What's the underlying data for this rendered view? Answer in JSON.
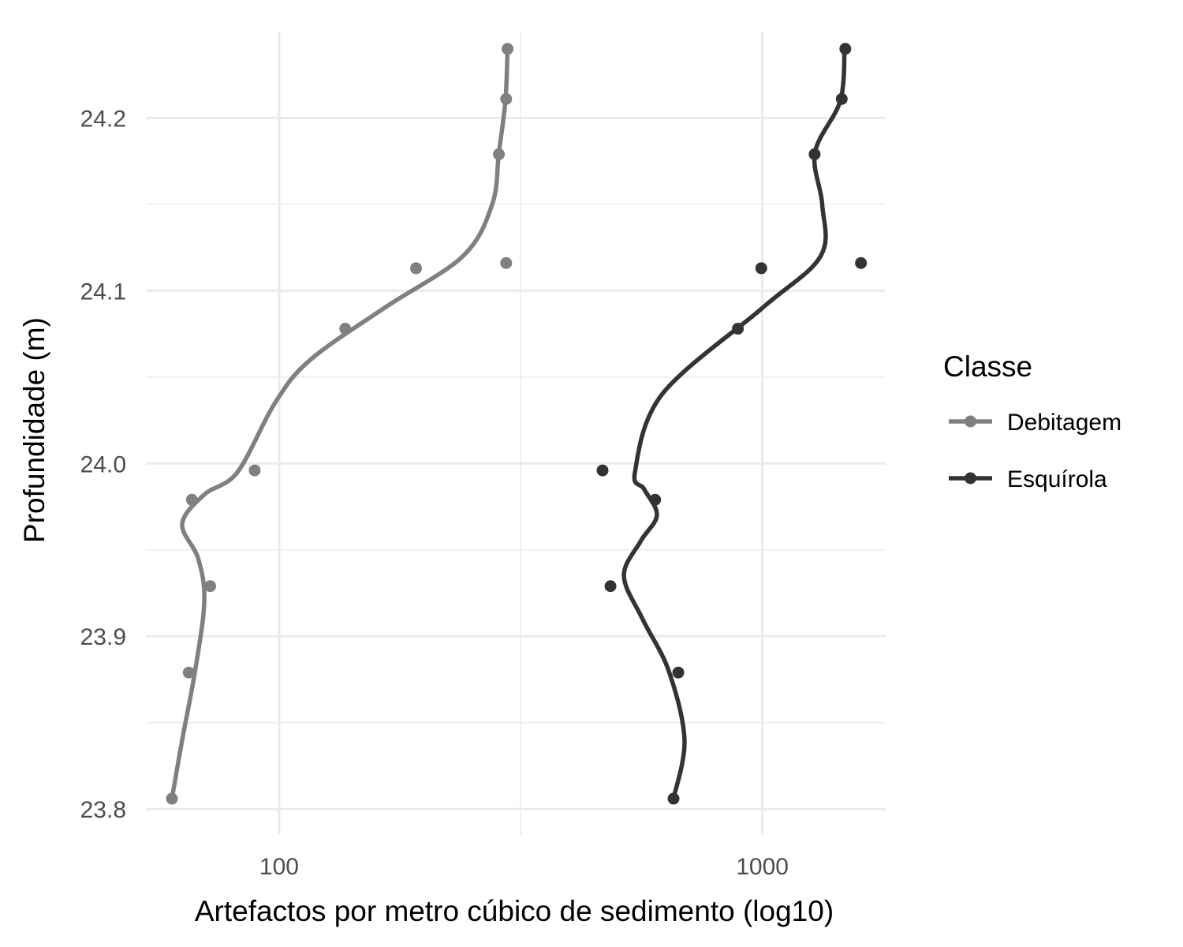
{
  "chart_data": {
    "type": "scatter",
    "title": "",
    "xlabel": "Artefactos por metro cúbico de sedimento (log10)",
    "ylabel": "Profundidade (m)",
    "x_scale": "log10",
    "xlim": [
      53,
      1800
    ],
    "ylim": [
      23.785,
      24.25
    ],
    "x_ticks": [
      100,
      1000
    ],
    "x_tick_labels": [
      "100",
      "1000"
    ],
    "y_ticks": [
      23.8,
      23.9,
      24.0,
      24.1,
      24.2
    ],
    "y_tick_labels": [
      "23.8",
      "23.9",
      "24.0",
      "24.1",
      "24.2"
    ],
    "grid": true,
    "legend": {
      "title": "Classe",
      "position": "right"
    },
    "series": [
      {
        "name": "Debitagem",
        "color": "#808080",
        "points": [
          {
            "x": 60,
            "y": 23.806
          },
          {
            "x": 65,
            "y": 23.879
          },
          {
            "x": 72,
            "y": 23.929
          },
          {
            "x": 66,
            "y": 23.979
          },
          {
            "x": 89,
            "y": 23.996
          },
          {
            "x": 137,
            "y": 24.078
          },
          {
            "x": 192,
            "y": 24.113
          },
          {
            "x": 295,
            "y": 24.116
          },
          {
            "x": 285,
            "y": 24.179
          },
          {
            "x": 295,
            "y": 24.211
          },
          {
            "x": 297,
            "y": 24.24
          }
        ],
        "smooth": [
          {
            "x": 60,
            "y": 23.806
          },
          {
            "x": 63,
            "y": 23.84
          },
          {
            "x": 67,
            "y": 23.88
          },
          {
            "x": 70,
            "y": 23.92
          },
          {
            "x": 68,
            "y": 23.945
          },
          {
            "x": 63,
            "y": 23.965
          },
          {
            "x": 70,
            "y": 23.982
          },
          {
            "x": 82,
            "y": 23.995
          },
          {
            "x": 98,
            "y": 24.035
          },
          {
            "x": 116,
            "y": 24.06
          },
          {
            "x": 165,
            "y": 24.09
          },
          {
            "x": 240,
            "y": 24.12
          },
          {
            "x": 276,
            "y": 24.15
          },
          {
            "x": 285,
            "y": 24.18
          },
          {
            "x": 294,
            "y": 24.21
          },
          {
            "x": 297,
            "y": 24.24
          }
        ]
      },
      {
        "name": "Esquírola",
        "color": "#333333",
        "points": [
          {
            "x": 655,
            "y": 23.806
          },
          {
            "x": 670,
            "y": 23.879
          },
          {
            "x": 485,
            "y": 23.929
          },
          {
            "x": 600,
            "y": 23.979
          },
          {
            "x": 467,
            "y": 23.996
          },
          {
            "x": 890,
            "y": 24.078
          },
          {
            "x": 995,
            "y": 24.113
          },
          {
            "x": 1600,
            "y": 24.116
          },
          {
            "x": 1283,
            "y": 24.179
          },
          {
            "x": 1460,
            "y": 24.211
          },
          {
            "x": 1485,
            "y": 24.24
          }
        ],
        "smooth": [
          {
            "x": 655,
            "y": 23.806
          },
          {
            "x": 690,
            "y": 23.84
          },
          {
            "x": 640,
            "y": 23.88
          },
          {
            "x": 565,
            "y": 23.91
          },
          {
            "x": 517,
            "y": 23.935
          },
          {
            "x": 560,
            "y": 23.955
          },
          {
            "x": 605,
            "y": 23.97
          },
          {
            "x": 570,
            "y": 23.985
          },
          {
            "x": 545,
            "y": 23.995
          },
          {
            "x": 620,
            "y": 24.04
          },
          {
            "x": 1000,
            "y": 24.09
          },
          {
            "x": 1320,
            "y": 24.12
          },
          {
            "x": 1330,
            "y": 24.15
          },
          {
            "x": 1285,
            "y": 24.18
          },
          {
            "x": 1450,
            "y": 24.21
          },
          {
            "x": 1480,
            "y": 24.24
          }
        ]
      }
    ]
  }
}
